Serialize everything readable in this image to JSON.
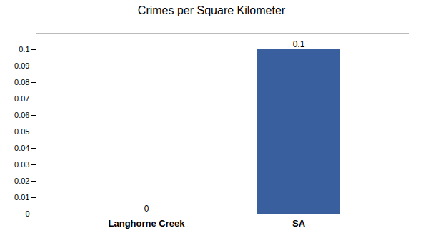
{
  "chart_data": {
    "type": "bar",
    "title": "Crimes per Square Kilometer",
    "categories": [
      "Langhorne Creek",
      "SA"
    ],
    "values": [
      0,
      0.1
    ],
    "color": "#3a5f9f",
    "ylim": [
      0,
      0.11
    ],
    "yticks": [
      0,
      0.01,
      0.02,
      0.03,
      0.04,
      0.05,
      0.06,
      0.07,
      0.08,
      0.09,
      0.1
    ],
    "grid": false,
    "data_labels": true
  }
}
